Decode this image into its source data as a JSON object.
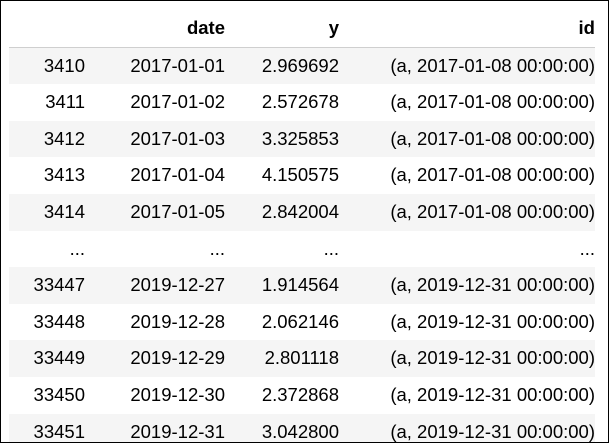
{
  "table": {
    "columns": [
      "",
      "date",
      "y",
      "id"
    ],
    "rows": [
      [
        "3410",
        "2017-01-01",
        "2.969692",
        "(a, 2017-01-08 00:00:00)"
      ],
      [
        "3411",
        "2017-01-02",
        "2.572678",
        "(a, 2017-01-08 00:00:00)"
      ],
      [
        "3412",
        "2017-01-03",
        "3.325853",
        "(a, 2017-01-08 00:00:00)"
      ],
      [
        "3413",
        "2017-01-04",
        "4.150575",
        "(a, 2017-01-08 00:00:00)"
      ],
      [
        "3414",
        "2017-01-05",
        "2.842004",
        "(a, 2017-01-08 00:00:00)"
      ],
      [
        "...",
        "...",
        "...",
        "..."
      ],
      [
        "33447",
        "2019-12-27",
        "1.914564",
        "(a, 2019-12-31 00:00:00)"
      ],
      [
        "33448",
        "2019-12-28",
        "2.062146",
        "(a, 2019-12-31 00:00:00)"
      ],
      [
        "33449",
        "2019-12-29",
        "2.801118",
        "(a, 2019-12-31 00:00:00)"
      ],
      [
        "33450",
        "2019-12-30",
        "2.372868",
        "(a, 2019-12-31 00:00:00)"
      ],
      [
        "33451",
        "2019-12-31",
        "3.042800",
        "(a, 2019-12-31 00:00:00)"
      ]
    ]
  }
}
